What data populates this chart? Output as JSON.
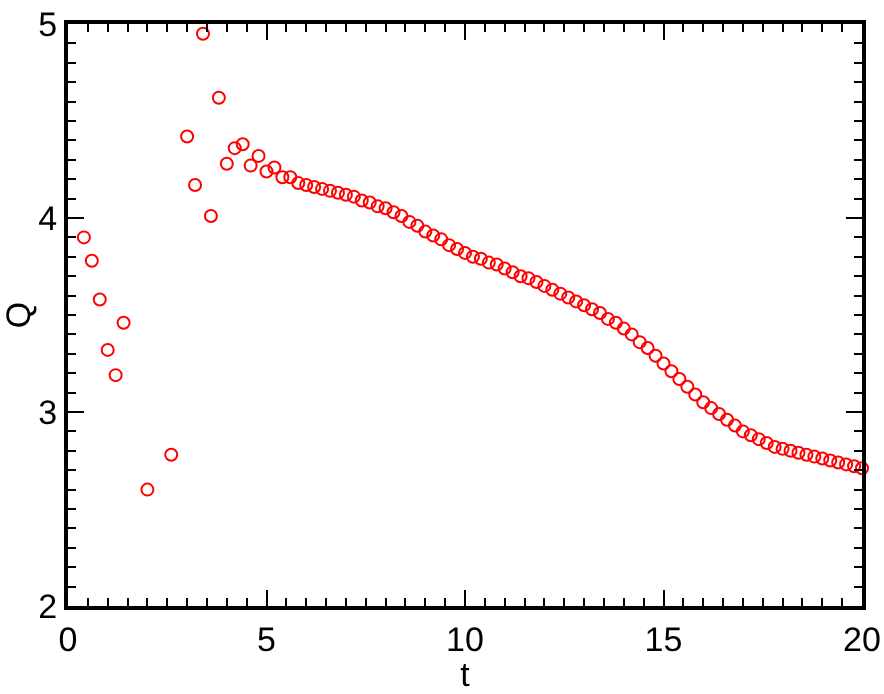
{
  "chart_data": {
    "type": "scatter",
    "xlabel": "t",
    "ylabel": "Q",
    "marker": "circle",
    "grid": false,
    "xlim": [
      0,
      20
    ],
    "xticks": [
      0,
      5,
      10,
      15,
      20
    ],
    "ylim": [
      2,
      5
    ],
    "yticks": [
      2,
      3,
      4,
      5
    ],
    "series": [
      {
        "color": "#ff0000",
        "x": [
          0.4,
          0.6,
          0.8,
          1.0,
          1.2,
          1.4,
          2.0,
          2.6,
          3.0,
          3.2,
          3.4,
          3.6,
          3.8,
          4.0,
          4.2,
          4.4,
          4.6,
          4.8,
          5.0,
          5.2,
          5.4,
          5.6,
          5.8,
          6.0,
          6.2,
          6.4,
          6.6,
          6.8,
          7.0,
          7.2,
          7.4,
          7.6,
          7.8,
          8.0,
          8.2,
          8.4,
          8.6,
          8.8,
          9.0,
          9.2,
          9.4,
          9.6,
          9.8,
          10.0,
          10.2,
          10.4,
          10.6,
          10.8,
          11.0,
          11.2,
          11.4,
          11.6,
          11.8,
          12.0,
          12.2,
          12.4,
          12.6,
          12.8,
          13.0,
          13.2,
          13.4,
          13.6,
          13.8,
          14.0,
          14.2,
          14.4,
          14.6,
          14.8,
          15.0,
          15.2,
          15.4,
          15.6,
          15.8,
          16.0,
          16.2,
          16.4,
          16.6,
          16.8,
          17.0,
          17.2,
          17.4,
          17.6,
          17.8,
          18.0,
          18.2,
          18.4,
          18.6,
          18.8,
          19.0,
          19.2,
          19.4,
          19.6,
          19.8,
          20.0
        ],
        "values": [
          3.9,
          3.78,
          3.58,
          3.32,
          3.19,
          3.46,
          2.6,
          2.78,
          4.42,
          4.17,
          4.95,
          4.01,
          4.62,
          4.28,
          4.36,
          4.38,
          4.27,
          4.32,
          4.24,
          4.26,
          4.21,
          4.21,
          4.18,
          4.17,
          4.16,
          4.15,
          4.14,
          4.13,
          4.12,
          4.11,
          4.09,
          4.08,
          4.06,
          4.05,
          4.03,
          4.01,
          3.98,
          3.96,
          3.93,
          3.91,
          3.89,
          3.86,
          3.84,
          3.82,
          3.8,
          3.79,
          3.77,
          3.76,
          3.74,
          3.72,
          3.7,
          3.69,
          3.67,
          3.65,
          3.63,
          3.61,
          3.59,
          3.57,
          3.55,
          3.53,
          3.51,
          3.48,
          3.46,
          3.43,
          3.4,
          3.36,
          3.33,
          3.29,
          3.25,
          3.21,
          3.17,
          3.13,
          3.09,
          3.05,
          3.02,
          2.99,
          2.96,
          2.93,
          2.9,
          2.88,
          2.86,
          2.84,
          2.82,
          2.81,
          2.8,
          2.79,
          2.78,
          2.77,
          2.76,
          2.75,
          2.74,
          2.73,
          2.72,
          2.71
        ]
      }
    ]
  }
}
